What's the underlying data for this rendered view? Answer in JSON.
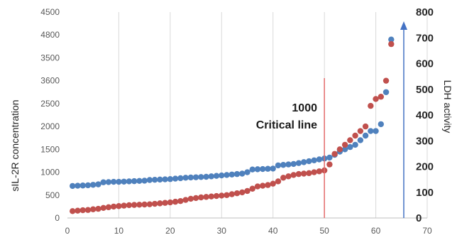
{
  "chart_data": {
    "type": "scatter",
    "x": [
      1,
      2,
      3,
      4,
      5,
      6,
      7,
      8,
      9,
      10,
      11,
      12,
      13,
      14,
      15,
      16,
      17,
      18,
      19,
      20,
      21,
      22,
      23,
      24,
      25,
      26,
      27,
      28,
      29,
      30,
      31,
      32,
      33,
      34,
      35,
      36,
      37,
      38,
      39,
      40,
      41,
      42,
      43,
      44,
      45,
      46,
      47,
      48,
      49,
      50,
      51,
      52,
      53,
      54,
      55,
      56,
      57,
      58,
      59,
      60,
      61,
      62,
      63
    ],
    "xlim": [
      0,
      70
    ],
    "x_ticks": [
      "0",
      "10",
      "20",
      "30",
      "40",
      "50",
      "60",
      "70"
    ],
    "y_left_ticks": [
      "0",
      "500",
      "1000",
      "1500",
      "2000",
      "2500",
      "3000",
      "3500",
      "4000",
      "4500"
    ],
    "y_left_tick_labels": [
      "0",
      "500",
      "1000",
      "1500",
      "2000",
      "2500",
      "3600",
      "3500",
      "4800",
      "4500"
    ],
    "y_right_ticks": [
      "0",
      "100",
      "200",
      "300",
      "400",
      "500",
      "600",
      "700",
      "800"
    ],
    "ylabel_left": "sIL-2R concentration",
    "ylabel_right": "LDH activity",
    "y_left_lim": [
      0,
      4500
    ],
    "y_right_lim": [
      0,
      800
    ],
    "series": [
      {
        "color": "#4f81bd",
        "axis": "left",
        "values": [
          700,
          705,
          710,
          715,
          725,
          735,
          780,
          785,
          790,
          790,
          795,
          800,
          805,
          810,
          815,
          830,
          835,
          840,
          845,
          850,
          860,
          870,
          880,
          885,
          890,
          895,
          900,
          910,
          920,
          930,
          940,
          950,
          960,
          970,
          1000,
          1060,
          1065,
          1070,
          1075,
          1080,
          1150,
          1160,
          1170,
          1180,
          1200,
          1220,
          1240,
          1260,
          1280,
          1300,
          1320,
          1380,
          1450,
          1500,
          1550,
          1600,
          1700,
          1800,
          1900,
          1900,
          2050,
          2750,
          3900
        ]
      },
      {
        "color": "#c0504d",
        "axis": "left",
        "values": [
          150,
          160,
          170,
          175,
          190,
          200,
          220,
          235,
          250,
          260,
          270,
          280,
          285,
          290,
          295,
          300,
          310,
          320,
          330,
          340,
          355,
          370,
          395,
          420,
          435,
          450,
          460,
          470,
          480,
          490,
          500,
          520,
          540,
          560,
          590,
          640,
          690,
          705,
          720,
          750,
          800,
          880,
          910,
          940,
          960,
          970,
          980,
          1000,
          1020,
          1040,
          1170,
          1400,
          1500,
          1600,
          1700,
          1800,
          1900,
          2000,
          2450,
          2600,
          2650,
          3000,
          3800
        ]
      }
    ],
    "vertical_line": {
      "x": 50,
      "color": "#e46c6c"
    },
    "right_axis_color": "#4472c4",
    "grid": true,
    "annotation": {
      "line1": "1000",
      "line2": "Critical line"
    }
  }
}
